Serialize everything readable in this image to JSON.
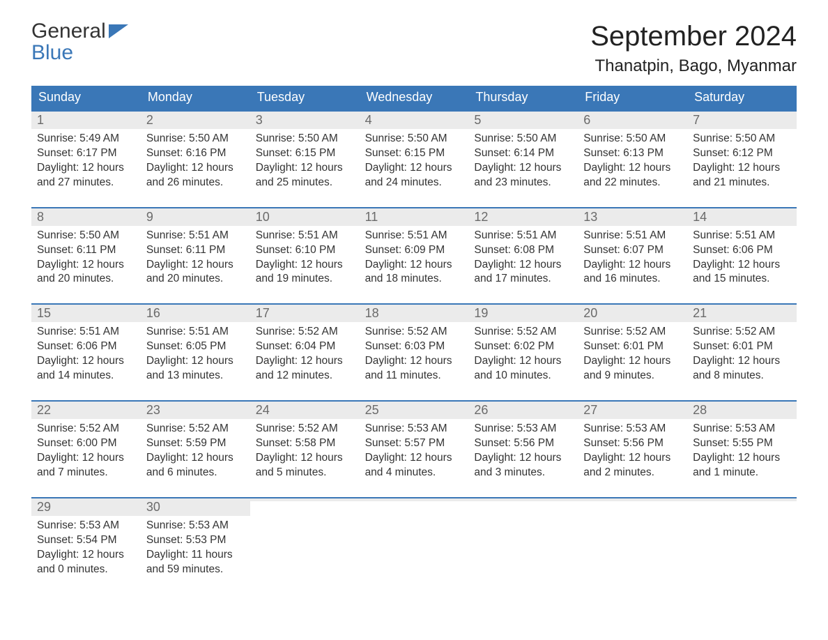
{
  "brand": {
    "part1": "General",
    "part2": "Blue"
  },
  "title": "September 2024",
  "location": "Thanatpin, Bago, Myanmar",
  "colors": {
    "brand_blue": "#3a77b7",
    "header_bg": "#3a77b7",
    "header_text": "#ffffff",
    "daynum_bg": "#ebebeb",
    "daynum_text": "#6a6a6a",
    "body_text": "#333333",
    "week_border": "#3a77b7",
    "page_bg": "#ffffff"
  },
  "typography": {
    "title_fontsize": 40,
    "location_fontsize": 24,
    "weekday_fontsize": 18,
    "daynum_fontsize": 18,
    "body_fontsize": 15.5
  },
  "layout": {
    "columns": 7,
    "rows": 5
  },
  "weekdays": [
    "Sunday",
    "Monday",
    "Tuesday",
    "Wednesday",
    "Thursday",
    "Friday",
    "Saturday"
  ],
  "weeks": [
    [
      {
        "n": "1",
        "sunrise": "Sunrise: 5:49 AM",
        "sunset": "Sunset: 6:17 PM",
        "d1": "Daylight: 12 hours",
        "d2": "and 27 minutes."
      },
      {
        "n": "2",
        "sunrise": "Sunrise: 5:50 AM",
        "sunset": "Sunset: 6:16 PM",
        "d1": "Daylight: 12 hours",
        "d2": "and 26 minutes."
      },
      {
        "n": "3",
        "sunrise": "Sunrise: 5:50 AM",
        "sunset": "Sunset: 6:15 PM",
        "d1": "Daylight: 12 hours",
        "d2": "and 25 minutes."
      },
      {
        "n": "4",
        "sunrise": "Sunrise: 5:50 AM",
        "sunset": "Sunset: 6:15 PM",
        "d1": "Daylight: 12 hours",
        "d2": "and 24 minutes."
      },
      {
        "n": "5",
        "sunrise": "Sunrise: 5:50 AM",
        "sunset": "Sunset: 6:14 PM",
        "d1": "Daylight: 12 hours",
        "d2": "and 23 minutes."
      },
      {
        "n": "6",
        "sunrise": "Sunrise: 5:50 AM",
        "sunset": "Sunset: 6:13 PM",
        "d1": "Daylight: 12 hours",
        "d2": "and 22 minutes."
      },
      {
        "n": "7",
        "sunrise": "Sunrise: 5:50 AM",
        "sunset": "Sunset: 6:12 PM",
        "d1": "Daylight: 12 hours",
        "d2": "and 21 minutes."
      }
    ],
    [
      {
        "n": "8",
        "sunrise": "Sunrise: 5:50 AM",
        "sunset": "Sunset: 6:11 PM",
        "d1": "Daylight: 12 hours",
        "d2": "and 20 minutes."
      },
      {
        "n": "9",
        "sunrise": "Sunrise: 5:51 AM",
        "sunset": "Sunset: 6:11 PM",
        "d1": "Daylight: 12 hours",
        "d2": "and 20 minutes."
      },
      {
        "n": "10",
        "sunrise": "Sunrise: 5:51 AM",
        "sunset": "Sunset: 6:10 PM",
        "d1": "Daylight: 12 hours",
        "d2": "and 19 minutes."
      },
      {
        "n": "11",
        "sunrise": "Sunrise: 5:51 AM",
        "sunset": "Sunset: 6:09 PM",
        "d1": "Daylight: 12 hours",
        "d2": "and 18 minutes."
      },
      {
        "n": "12",
        "sunrise": "Sunrise: 5:51 AM",
        "sunset": "Sunset: 6:08 PM",
        "d1": "Daylight: 12 hours",
        "d2": "and 17 minutes."
      },
      {
        "n": "13",
        "sunrise": "Sunrise: 5:51 AM",
        "sunset": "Sunset: 6:07 PM",
        "d1": "Daylight: 12 hours",
        "d2": "and 16 minutes."
      },
      {
        "n": "14",
        "sunrise": "Sunrise: 5:51 AM",
        "sunset": "Sunset: 6:06 PM",
        "d1": "Daylight: 12 hours",
        "d2": "and 15 minutes."
      }
    ],
    [
      {
        "n": "15",
        "sunrise": "Sunrise: 5:51 AM",
        "sunset": "Sunset: 6:06 PM",
        "d1": "Daylight: 12 hours",
        "d2": "and 14 minutes."
      },
      {
        "n": "16",
        "sunrise": "Sunrise: 5:51 AM",
        "sunset": "Sunset: 6:05 PM",
        "d1": "Daylight: 12 hours",
        "d2": "and 13 minutes."
      },
      {
        "n": "17",
        "sunrise": "Sunrise: 5:52 AM",
        "sunset": "Sunset: 6:04 PM",
        "d1": "Daylight: 12 hours",
        "d2": "and 12 minutes."
      },
      {
        "n": "18",
        "sunrise": "Sunrise: 5:52 AM",
        "sunset": "Sunset: 6:03 PM",
        "d1": "Daylight: 12 hours",
        "d2": "and 11 minutes."
      },
      {
        "n": "19",
        "sunrise": "Sunrise: 5:52 AM",
        "sunset": "Sunset: 6:02 PM",
        "d1": "Daylight: 12 hours",
        "d2": "and 10 minutes."
      },
      {
        "n": "20",
        "sunrise": "Sunrise: 5:52 AM",
        "sunset": "Sunset: 6:01 PM",
        "d1": "Daylight: 12 hours",
        "d2": "and 9 minutes."
      },
      {
        "n": "21",
        "sunrise": "Sunrise: 5:52 AM",
        "sunset": "Sunset: 6:01 PM",
        "d1": "Daylight: 12 hours",
        "d2": "and 8 minutes."
      }
    ],
    [
      {
        "n": "22",
        "sunrise": "Sunrise: 5:52 AM",
        "sunset": "Sunset: 6:00 PM",
        "d1": "Daylight: 12 hours",
        "d2": "and 7 minutes."
      },
      {
        "n": "23",
        "sunrise": "Sunrise: 5:52 AM",
        "sunset": "Sunset: 5:59 PM",
        "d1": "Daylight: 12 hours",
        "d2": "and 6 minutes."
      },
      {
        "n": "24",
        "sunrise": "Sunrise: 5:52 AM",
        "sunset": "Sunset: 5:58 PM",
        "d1": "Daylight: 12 hours",
        "d2": "and 5 minutes."
      },
      {
        "n": "25",
        "sunrise": "Sunrise: 5:53 AM",
        "sunset": "Sunset: 5:57 PM",
        "d1": "Daylight: 12 hours",
        "d2": "and 4 minutes."
      },
      {
        "n": "26",
        "sunrise": "Sunrise: 5:53 AM",
        "sunset": "Sunset: 5:56 PM",
        "d1": "Daylight: 12 hours",
        "d2": "and 3 minutes."
      },
      {
        "n": "27",
        "sunrise": "Sunrise: 5:53 AM",
        "sunset": "Sunset: 5:56 PM",
        "d1": "Daylight: 12 hours",
        "d2": "and 2 minutes."
      },
      {
        "n": "28",
        "sunrise": "Sunrise: 5:53 AM",
        "sunset": "Sunset: 5:55 PM",
        "d1": "Daylight: 12 hours",
        "d2": "and 1 minute."
      }
    ],
    [
      {
        "n": "29",
        "sunrise": "Sunrise: 5:53 AM",
        "sunset": "Sunset: 5:54 PM",
        "d1": "Daylight: 12 hours",
        "d2": "and 0 minutes."
      },
      {
        "n": "30",
        "sunrise": "Sunrise: 5:53 AM",
        "sunset": "Sunset: 5:53 PM",
        "d1": "Daylight: 11 hours",
        "d2": "and 59 minutes."
      },
      {
        "n": "",
        "sunrise": "",
        "sunset": "",
        "d1": "",
        "d2": ""
      },
      {
        "n": "",
        "sunrise": "",
        "sunset": "",
        "d1": "",
        "d2": ""
      },
      {
        "n": "",
        "sunrise": "",
        "sunset": "",
        "d1": "",
        "d2": ""
      },
      {
        "n": "",
        "sunrise": "",
        "sunset": "",
        "d1": "",
        "d2": ""
      },
      {
        "n": "",
        "sunrise": "",
        "sunset": "",
        "d1": "",
        "d2": ""
      }
    ]
  ]
}
